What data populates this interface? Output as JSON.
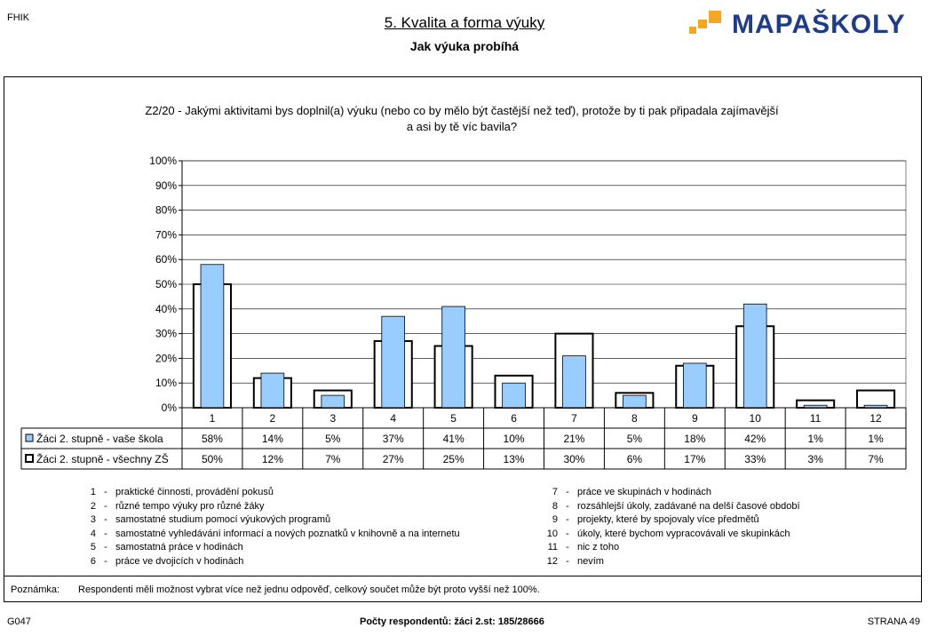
{
  "header": {
    "corner_code": "FHIK",
    "title": "5. Kvalita a forma výuky",
    "subtitle": "Jak výuka probíhá",
    "logo_text": "MAPAŠKOLY"
  },
  "colors": {
    "series_school_fill": "#99ccff",
    "series_all_fill": "#ffffff",
    "logo_text": "#1f3c88",
    "logo_squares": "#f5a623"
  },
  "chart_data": {
    "type": "bar",
    "title": "Z2/20 - Jakými aktivitami bys doplnil(a) výuku (nebo co by mělo být častější než teď), protože by ti pak připadala zajímavější a asi by tě víc bavila?",
    "title_lines": [
      "Z2/20 - Jakými aktivitami bys doplnil(a) výuku (nebo co by mělo být častější než teď), protože by ti pak připadala zajímavější",
      "a asi by tě víc bavila?"
    ],
    "categories": [
      "1",
      "2",
      "3",
      "4",
      "5",
      "6",
      "7",
      "8",
      "9",
      "10",
      "11",
      "12"
    ],
    "y_ticks": [
      "0%",
      "10%",
      "20%",
      "30%",
      "40%",
      "50%",
      "60%",
      "70%",
      "80%",
      "90%",
      "100%"
    ],
    "ylim": [
      0,
      100
    ],
    "grid": true,
    "series": [
      {
        "name": "Žáci 2. stupně - vaše škola",
        "values": [
          58,
          14,
          5,
          37,
          41,
          10,
          21,
          5,
          18,
          42,
          1,
          1
        ],
        "labels": [
          "58%",
          "14%",
          "5%",
          "37%",
          "41%",
          "10%",
          "21%",
          "5%",
          "18%",
          "42%",
          "1%",
          "1%"
        ],
        "style": "filled"
      },
      {
        "name": "Žáci 2. stupně - všechny ZŠ",
        "values": [
          50,
          12,
          7,
          27,
          25,
          13,
          30,
          6,
          17,
          33,
          3,
          7
        ],
        "labels": [
          "50%",
          "12%",
          "7%",
          "27%",
          "25%",
          "13%",
          "30%",
          "6%",
          "17%",
          "33%",
          "3%",
          "7%"
        ],
        "style": "outline"
      }
    ]
  },
  "category_legend": {
    "left": [
      {
        "num": "1",
        "text": "praktické činnosti, provádění pokusů"
      },
      {
        "num": "2",
        "text": "různé tempo výuky pro různé žáky"
      },
      {
        "num": "3",
        "text": "samostatné studium pomocí výukových programů"
      },
      {
        "num": "4",
        "text": "samostatné vyhledávání informací a nových poznatků v knihovně a na internetu"
      },
      {
        "num": "5",
        "text": "samostatná práce v hodinách"
      },
      {
        "num": "6",
        "text": "práce ve dvojicích v hodinách"
      }
    ],
    "right": [
      {
        "num": "7",
        "text": "práce ve skupinách v hodinách"
      },
      {
        "num": "8",
        "text": "rozsáhlejší úkoly, zadávané na delší časové období"
      },
      {
        "num": "9",
        "text": "projekty, které by spojovaly více předmětů"
      },
      {
        "num": "10",
        "text": "úkoly, které bychom vypracovávali ve skupinkách"
      },
      {
        "num": "11",
        "text": "nic z toho"
      },
      {
        "num": "12",
        "text": "nevím"
      }
    ]
  },
  "note": {
    "label": "Poznámka:",
    "text": "Respondenti měli možnost vybrat více než jednu odpověď, celkový součet může být proto vyšší než 100%."
  },
  "footer": {
    "left": "G047",
    "center": "Počty respondentů:   žáci 2.st: 185/28666",
    "right": "STRANA 49"
  }
}
